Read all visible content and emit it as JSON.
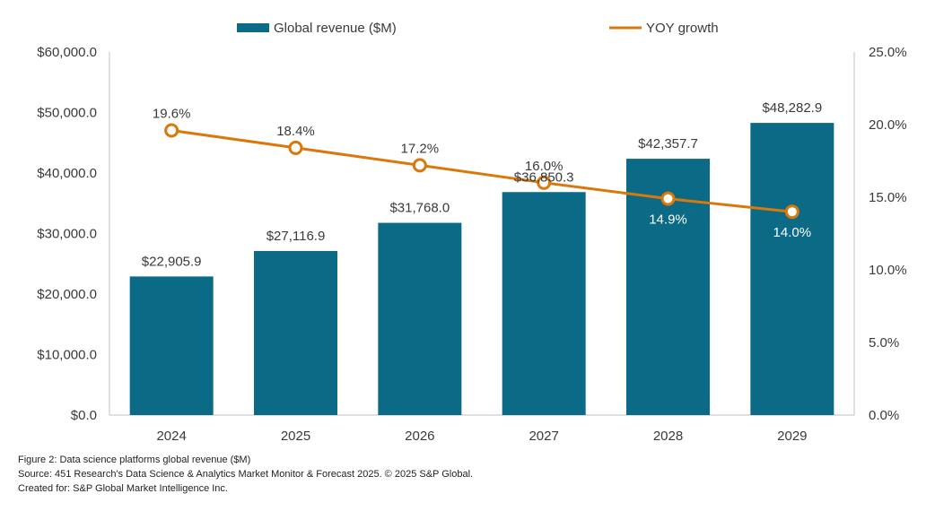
{
  "chart_data": {
    "type": "bar",
    "categories": [
      "2024",
      "2025",
      "2026",
      "2027",
      "2028",
      "2029"
    ],
    "series": [
      {
        "name": "Global revenue ($M)",
        "type": "bar",
        "axis": "left",
        "color": "#0b6a85",
        "values": [
          22905.9,
          27116.9,
          31768.0,
          36850.3,
          42357.7,
          48282.9
        ],
        "labels": [
          "$22,905.9",
          "$27,116.9",
          "$31,768.0",
          "$36,850.3",
          "$42,357.7",
          "$48,282.9"
        ]
      },
      {
        "name": "YOY growth",
        "type": "line",
        "axis": "right",
        "color": "#d9780b",
        "values": [
          19.6,
          18.4,
          17.2,
          16.0,
          14.9,
          14.0
        ],
        "labels": [
          "19.6%",
          "18.4%",
          "17.2%",
          "16.0%",
          "14.9%",
          "14.0%"
        ]
      }
    ],
    "ylim": [
      0,
      60000
    ],
    "y2lim": [
      0,
      25
    ],
    "yticks": [
      "$0.0",
      "$10,000.0",
      "$20,000.0",
      "$30,000.0",
      "$40,000.0",
      "$50,000.0",
      "$60,000.0"
    ],
    "y2ticks": [
      "0.0%",
      "5.0%",
      "10.0%",
      "15.0%",
      "20.0%",
      "25.0%"
    ],
    "legend_position": "top",
    "grid": false
  },
  "footer": {
    "caption": "Figure 2: Data science platforms global revenue ($M)",
    "source": "Source: 451 Research's Data Science & Analytics Market Monitor & Forecast 2025.  © 2025 S&P Global.",
    "created_for": "Created for: S&P Global Market Intelligence Inc."
  }
}
